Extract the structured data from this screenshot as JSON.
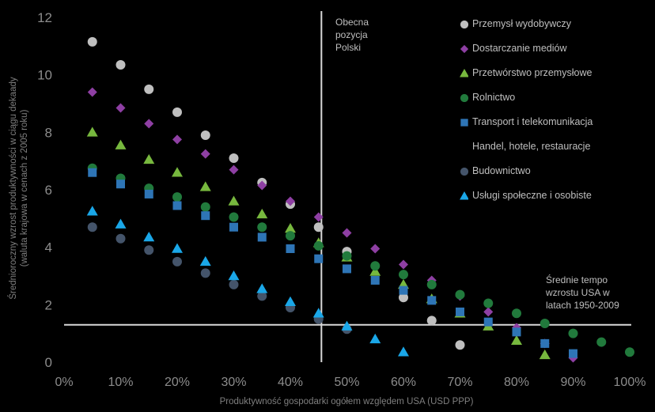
{
  "chart_data": {
    "type": "scatter",
    "xlabel": "Produktywność gospodarki ogółem względem USA (USD PPP)",
    "ylabel_lines": [
      "Średnioroczny wzrost produktywności w ciągu dekaady",
      "(waluta krajowa w cenach  z 2005 roku)"
    ],
    "xlim": [
      0,
      100
    ],
    "ylim": [
      0,
      12
    ],
    "x_ticks": [
      0,
      10,
      20,
      30,
      40,
      50,
      60,
      70,
      80,
      90,
      100
    ],
    "x_tick_labels": [
      "0%",
      "10%",
      "20%",
      "30%",
      "40%",
      "50%",
      "60%",
      "70%",
      "80%",
      "90%",
      "100%"
    ],
    "y_ticks": [
      0,
      2,
      4,
      6,
      8,
      10,
      12
    ],
    "y_tick_labels": [
      "0",
      "2",
      "4",
      "6",
      "8",
      "10",
      "12"
    ],
    "grid": false,
    "legend_position": "right",
    "reference_lines": {
      "vertical_x": 45.5,
      "horizontal_y": 1.3
    },
    "annotations": {
      "current_position": [
        "Obecna",
        "pozycja",
        "Polski"
      ],
      "usa_rate": [
        "Średnie tempo",
        "wzrostu USA w",
        "latach 1950-2009"
      ]
    },
    "series": [
      {
        "name": "Przemysł wydobywczy",
        "marker": "circle",
        "color": "#bfbfbf",
        "x": [
          5,
          10,
          15,
          20,
          25,
          30,
          35,
          40,
          45,
          50,
          60,
          65,
          70
        ],
        "y": [
          11.15,
          10.35,
          9.5,
          8.7,
          7.9,
          7.1,
          6.25,
          5.5,
          4.7,
          3.85,
          2.25,
          1.45,
          0.6
        ]
      },
      {
        "name": "Dostarczanie mediów",
        "marker": "diamond",
        "color": "#8e3fa3",
        "x": [
          5,
          10,
          15,
          20,
          25,
          30,
          35,
          40,
          45,
          50,
          55,
          60,
          65,
          70,
          75,
          80,
          85,
          90
        ],
        "y": [
          9.4,
          8.85,
          8.3,
          7.75,
          7.25,
          6.7,
          6.15,
          5.6,
          5.05,
          4.5,
          3.95,
          3.4,
          2.85,
          2.3,
          1.75,
          1.2,
          0.65,
          0.15
        ]
      },
      {
        "name": "Przetwórstwo przemysłowe",
        "marker": "triangle",
        "color": "#77b83e",
        "x": [
          5,
          10,
          15,
          20,
          25,
          30,
          35,
          40,
          45,
          50,
          55,
          60,
          65,
          70,
          75,
          80,
          85
        ],
        "y": [
          8.0,
          7.55,
          7.05,
          6.6,
          6.1,
          5.6,
          5.15,
          4.65,
          4.15,
          3.65,
          3.15,
          2.7,
          2.2,
          1.7,
          1.25,
          0.75,
          0.25
        ]
      },
      {
        "name": "Rolnictwo",
        "marker": "circle",
        "color": "#217a3c",
        "x": [
          5,
          10,
          15,
          20,
          25,
          30,
          35,
          40,
          45,
          50,
          55,
          60,
          65,
          70,
          75,
          80,
          85,
          90,
          95,
          100
        ],
        "y": [
          6.75,
          6.4,
          6.05,
          5.75,
          5.4,
          5.05,
          4.7,
          4.4,
          4.05,
          3.7,
          3.35,
          3.05,
          2.7,
          2.35,
          2.05,
          1.7,
          1.35,
          1.0,
          0.7,
          0.35
        ]
      },
      {
        "name": "Transport i telekomunikacja",
        "marker": "square",
        "color": "#2e75b6",
        "x": [
          5,
          10,
          15,
          20,
          25,
          30,
          35,
          40,
          45,
          50,
          55,
          60,
          65,
          70,
          75,
          80,
          85,
          90
        ],
        "y": [
          6.6,
          6.2,
          5.85,
          5.45,
          5.1,
          4.7,
          4.35,
          3.95,
          3.6,
          3.25,
          2.85,
          2.5,
          2.15,
          1.75,
          1.4,
          1.05,
          0.65,
          0.3
        ]
      },
      {
        "name": "Handel, hotele, restauracje",
        "marker": "none",
        "color": "#000000",
        "x": [],
        "y": []
      },
      {
        "name": "Budownictwo",
        "marker": "circle",
        "color": "#44546a",
        "x": [
          5,
          10,
          15,
          20,
          25,
          30,
          35,
          40,
          45,
          50
        ],
        "y": [
          4.7,
          4.3,
          3.9,
          3.5,
          3.1,
          2.7,
          2.3,
          1.9,
          1.5,
          1.15
        ]
      },
      {
        "name": "Usługi społeczne i osobiste",
        "marker": "triangle",
        "color": "#1aa7e8",
        "x": [
          5,
          10,
          15,
          20,
          25,
          30,
          35,
          40,
          45,
          50,
          55,
          60
        ],
        "y": [
          5.25,
          4.8,
          4.35,
          3.95,
          3.5,
          3.0,
          2.55,
          2.1,
          1.7,
          1.25,
          0.8,
          0.35
        ]
      }
    ]
  }
}
